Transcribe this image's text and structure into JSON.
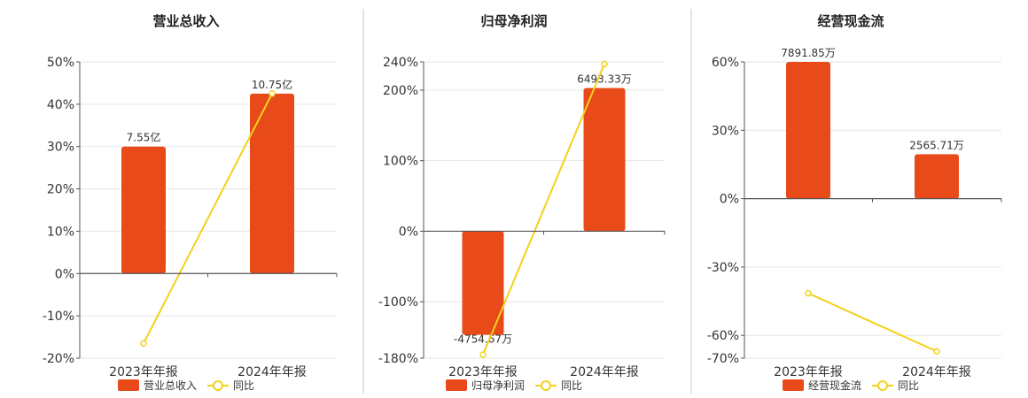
{
  "colors": {
    "bar": "#e84a1a",
    "line": "#f2d21b",
    "grid": "#e6e6e6",
    "axis": "#555555",
    "divider": "#c8c8c8"
  },
  "chart_data": [
    {
      "type": "bar",
      "title": "营业总收入",
      "categories": [
        "2023年年报",
        "2024年年报"
      ],
      "series": [
        {
          "name": "营业总收入",
          "type": "bar",
          "values": [
            30,
            42.5
          ],
          "labels": [
            "7.55亿",
            "10.75亿"
          ]
        },
        {
          "name": "同比",
          "type": "line",
          "values": [
            -16.5,
            42.5
          ]
        }
      ],
      "yticks": [
        "-20%",
        "-10%",
        "0%",
        "10%",
        "20%",
        "30%",
        "40%",
        "50%"
      ],
      "ylim": [
        -20,
        50
      ]
    },
    {
      "type": "bar",
      "title": "归母净利润",
      "categories": [
        "2023年年报",
        "2024年年报"
      ],
      "series": [
        {
          "name": "归母净利润",
          "type": "bar",
          "values": [
            -147,
            203
          ],
          "labels": [
            "-4754.67万",
            "6493.33万"
          ]
        },
        {
          "name": "同比",
          "type": "line",
          "values": [
            -175,
            237
          ]
        }
      ],
      "yticks": [
        "-180%",
        "-100%",
        "0%",
        "100%",
        "200%",
        "240%"
      ],
      "ytick_values": [
        -180,
        -100,
        0,
        100,
        200,
        240
      ],
      "ylim": [
        -180,
        240
      ]
    },
    {
      "type": "bar",
      "title": "经营现金流",
      "categories": [
        "2023年年报",
        "2024年年报"
      ],
      "series": [
        {
          "name": "经营现金流",
          "type": "bar",
          "values": [
            60,
            19.5
          ],
          "labels": [
            "7891.85万",
            "2565.71万"
          ]
        },
        {
          "name": "同比",
          "type": "line",
          "values": [
            -41.5,
            -67
          ]
        }
      ],
      "yticks": [
        "-70%",
        "-60%",
        "-30%",
        "0%",
        "30%",
        "60%"
      ],
      "ytick_values": [
        -70,
        -60,
        -30,
        0,
        30,
        60
      ],
      "ylim": [
        -70,
        60
      ]
    }
  ]
}
